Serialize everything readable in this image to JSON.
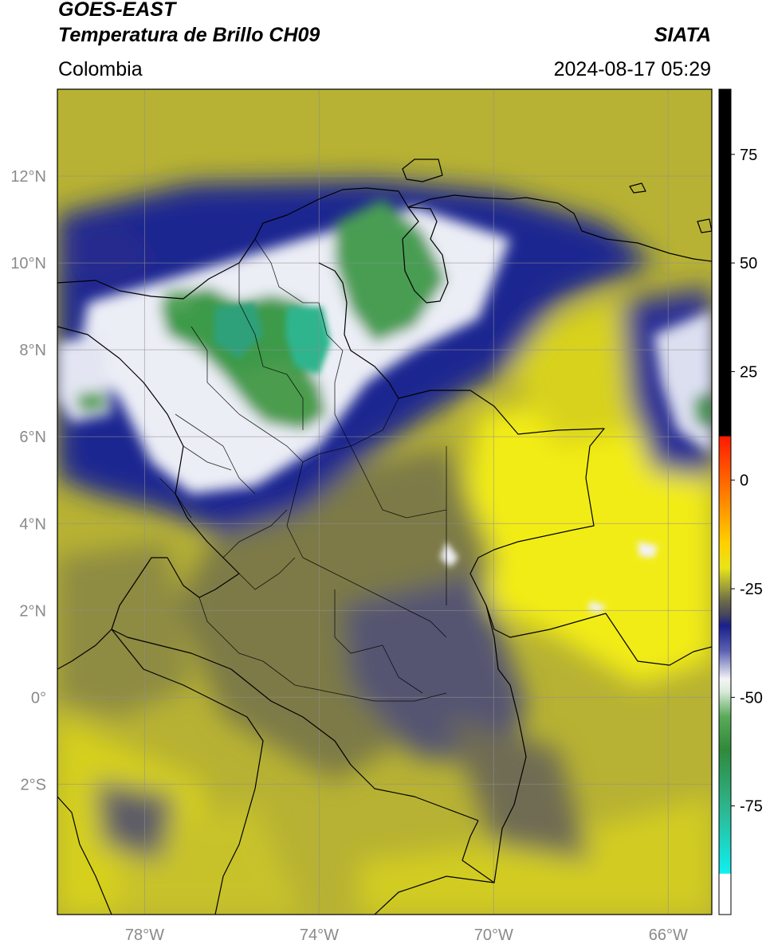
{
  "header": {
    "title_line1": "GOES-EAST",
    "title_line2": "Temperatura de Brillo CH09",
    "organization": "SIATA",
    "region": "Colombia",
    "datetime": "2024-08-17 05:29"
  },
  "map": {
    "lat_ticks": [
      {
        "value": 12,
        "label": "12°N"
      },
      {
        "value": 10,
        "label": "10°N"
      },
      {
        "value": 8,
        "label": "8°N"
      },
      {
        "value": 6,
        "label": "6°N"
      },
      {
        "value": 4,
        "label": "4°N"
      },
      {
        "value": 2,
        "label": "2°N"
      },
      {
        "value": 0,
        "label": "0°"
      },
      {
        "value": -2,
        "label": "2°S"
      }
    ],
    "lon_ticks": [
      {
        "value": -78,
        "label": "78°W"
      },
      {
        "value": -74,
        "label": "74°W"
      },
      {
        "value": -70,
        "label": "70°W"
      },
      {
        "value": -66,
        "label": "66°W"
      }
    ],
    "extent": {
      "lon_min": -80,
      "lon_max": -65,
      "lat_min": -5,
      "lat_max": 14
    },
    "colors": {
      "warm_yellow": "#e8e41a",
      "olive": "#9a9a3a",
      "dark_olive": "#6c6a48",
      "navy": "#1a1f8a",
      "white": "#f2f2f6",
      "green": "#3f9a4a",
      "teal": "#2db58e"
    }
  },
  "colorbar": {
    "range": [
      -100,
      90
    ],
    "ticks": [
      {
        "value": 75,
        "label": "75"
      },
      {
        "value": 50,
        "label": "50"
      },
      {
        "value": 25,
        "label": "25"
      },
      {
        "value": 0,
        "label": "0"
      },
      {
        "value": -25,
        "label": "-25"
      },
      {
        "value": -50,
        "label": "-50"
      },
      {
        "value": -75,
        "label": "-75"
      }
    ]
  }
}
